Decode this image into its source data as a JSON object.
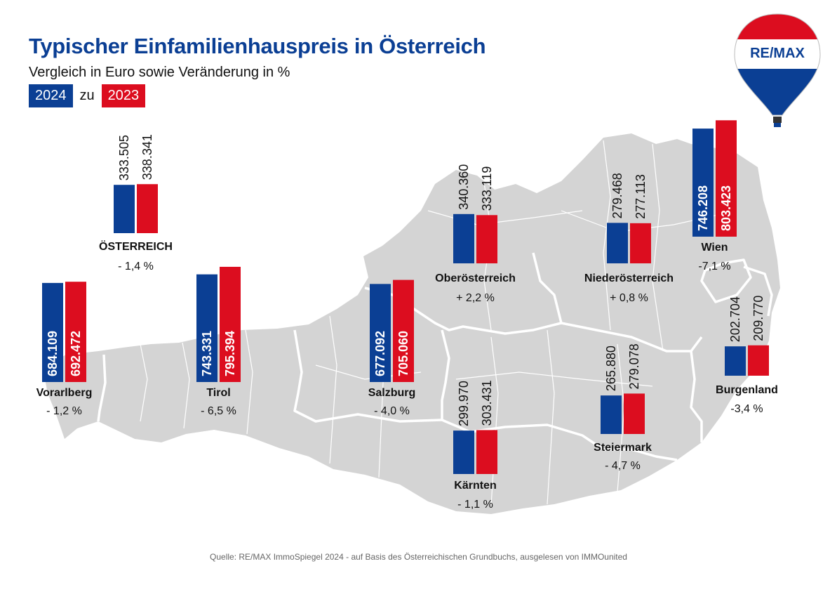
{
  "header": {
    "title": "Typischer Einfamilienhauspreis in Österreich",
    "subtitle": "Vergleich in Euro sowie Veränderung in %",
    "legend_2024": "2024",
    "legend_joiner": "zu",
    "legend_2023": "2023"
  },
  "logo": {
    "text": "RE/MAX"
  },
  "colors": {
    "y2024": "#0b3f94",
    "y2023": "#dc0d1f",
    "map": "#d4d4d4",
    "border": "#ffffff"
  },
  "source": "Quelle: RE/MAX ImmoSpiegel 2024 - auf Basis des Österreichischen Grundbuchs, ausgelesen von IMMOunited",
  "chart_data": {
    "type": "bar",
    "title": "Typischer Einfamilienhauspreis in Österreich",
    "subtitle": "Vergleich in Euro sowie Veränderung in %",
    "series_names": [
      "2024",
      "2023"
    ],
    "regions": [
      {
        "name": "ÖSTERREICH",
        "v2024": 333505,
        "v2023": 338341,
        "l2024": "333.505",
        "l2023": "338.341",
        "change": "- 1,4 %",
        "labels_inside": false
      },
      {
        "name": "Vorarlberg",
        "v2024": 684109,
        "v2023": 692472,
        "l2024": "684.109",
        "l2023": "692.472",
        "change": "- 1,2 %",
        "labels_inside": true
      },
      {
        "name": "Tirol",
        "v2024": 743331,
        "v2023": 795394,
        "l2024": "743.331",
        "l2023": "795.394",
        "change": "- 6,5 %",
        "labels_inside": true
      },
      {
        "name": "Salzburg",
        "v2024": 677092,
        "v2023": 705060,
        "l2024": "677.092",
        "l2023": "705.060",
        "change": "- 4,0 %",
        "labels_inside": true
      },
      {
        "name": "Oberösterreich",
        "v2024": 340360,
        "v2023": 333119,
        "l2024": "340.360",
        "l2023": "333.119",
        "change": "+ 2,2 %",
        "labels_inside": false
      },
      {
        "name": "Niederösterreich",
        "v2024": 279468,
        "v2023": 277113,
        "l2024": "279.468",
        "l2023": "277.113",
        "change": "+ 0,8 %",
        "labels_inside": false
      },
      {
        "name": "Wien",
        "v2024": 746208,
        "v2023": 803423,
        "l2024": "746.208",
        "l2023": "803.423",
        "change": "-7,1 %",
        "labels_inside": true
      },
      {
        "name": "Kärnten",
        "v2024": 299970,
        "v2023": 303431,
        "l2024": "299.970",
        "l2023": "303.431",
        "change": "- 1,1 %",
        "labels_inside": false
      },
      {
        "name": "Steiermark",
        "v2024": 265880,
        "v2023": 279078,
        "l2024": "265.880",
        "l2023": "279.078",
        "change": "- 4,7 %",
        "labels_inside": false
      },
      {
        "name": "Burgenland",
        "v2024": 202704,
        "v2023": 209770,
        "l2024": "202.704",
        "l2023": "209.770",
        "change": "-3,4 %",
        "labels_inside": false
      }
    ]
  }
}
